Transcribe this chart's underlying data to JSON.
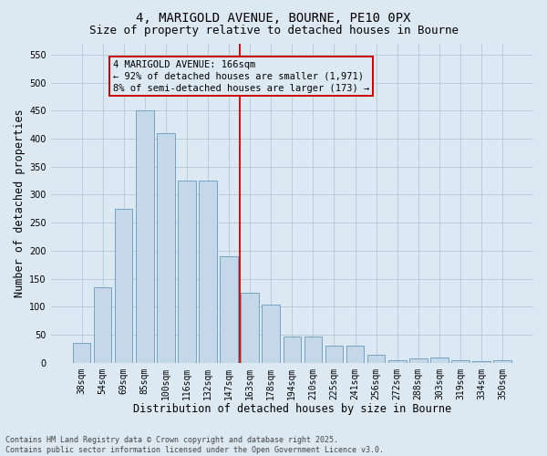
{
  "title": "4, MARIGOLD AVENUE, BOURNE, PE10 0PX",
  "subtitle": "Size of property relative to detached houses in Bourne",
  "xlabel": "Distribution of detached houses by size in Bourne",
  "ylabel": "Number of detached properties",
  "categories": [
    "38sqm",
    "54sqm",
    "69sqm",
    "85sqm",
    "100sqm",
    "116sqm",
    "132sqm",
    "147sqm",
    "163sqm",
    "178sqm",
    "194sqm",
    "210sqm",
    "225sqm",
    "241sqm",
    "256sqm",
    "272sqm",
    "288sqm",
    "303sqm",
    "319sqm",
    "334sqm",
    "350sqm"
  ],
  "values": [
    35,
    135,
    275,
    450,
    410,
    325,
    325,
    190,
    125,
    103,
    46,
    46,
    30,
    30,
    15,
    5,
    8,
    10,
    5,
    3,
    5
  ],
  "bar_color": "#c5d8ea",
  "bar_edge_color": "#6699bb",
  "grid_color": "#b8ccd8",
  "background_color": "#dce8f2",
  "vline_color": "#cc0000",
  "vline_pos": 8,
  "annotation_text": "4 MARIGOLD AVENUE: 166sqm\n← 92% of detached houses are smaller (1,971)\n8% of semi-detached houses are larger (173) →",
  "ylim": [
    0,
    570
  ],
  "yticks": [
    0,
    50,
    100,
    150,
    200,
    250,
    300,
    350,
    400,
    450,
    500,
    550
  ],
  "footer": "Contains HM Land Registry data © Crown copyright and database right 2025.\nContains public sector information licensed under the Open Government Licence v3.0.",
  "title_fontsize": 10,
  "subtitle_fontsize": 9,
  "xlabel_fontsize": 8.5,
  "ylabel_fontsize": 8.5,
  "tick_fontsize": 7,
  "annotation_fontsize": 7.5,
  "footer_fontsize": 6
}
